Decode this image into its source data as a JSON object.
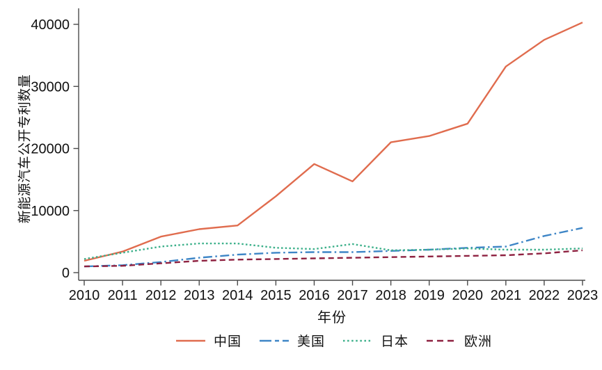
{
  "chart_data": {
    "type": "line",
    "title": "",
    "xlabel": "年份",
    "ylabel": "新能源汽车公开专利数量",
    "x": [
      2010,
      2011,
      2012,
      2013,
      2014,
      2015,
      2016,
      2017,
      2018,
      2019,
      2020,
      2021,
      2022,
      2023
    ],
    "ylim": [
      0,
      40000
    ],
    "yticks": [
      0,
      10000,
      20000,
      30000,
      40000
    ],
    "grid": false,
    "legend_position": "bottom",
    "series": [
      {
        "name": "中国",
        "color": "#e06c4e",
        "style": "solid",
        "values": [
          1900,
          3400,
          5800,
          7000,
          7600,
          12300,
          17500,
          14700,
          21000,
          22000,
          24000,
          33200,
          37500,
          40300
        ]
      },
      {
        "name": "美国",
        "color": "#3d85c6",
        "style": "dashdot",
        "values": [
          1000,
          1200,
          1700,
          2400,
          2900,
          3200,
          3300,
          3300,
          3500,
          3700,
          4000,
          4200,
          5900,
          7200
        ]
      },
      {
        "name": "日本",
        "color": "#3cb08a",
        "style": "dotted",
        "values": [
          2200,
          3200,
          4200,
          4700,
          4700,
          4000,
          3800,
          4600,
          3600,
          3700,
          3900,
          3700,
          3700,
          3900
        ]
      },
      {
        "name": "欧洲",
        "color": "#8e2140",
        "style": "dashed",
        "values": [
          1000,
          1100,
          1500,
          1900,
          2100,
          2200,
          2300,
          2400,
          2500,
          2600,
          2700,
          2800,
          3100,
          3600
        ]
      }
    ],
    "colors": {
      "axis": "#4a4a4a",
      "text": "#111111",
      "background": "#ffffff"
    }
  }
}
